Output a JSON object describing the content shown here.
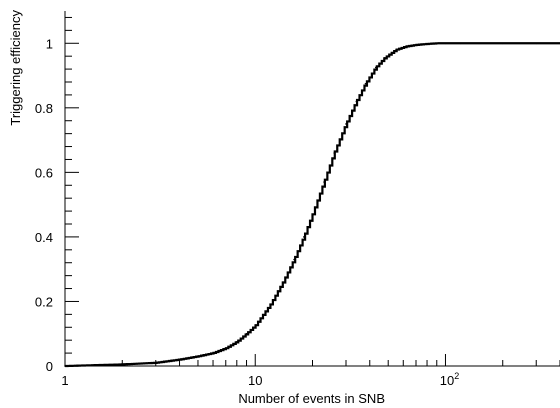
{
  "chart_data": {
    "type": "line",
    "title": "",
    "xlabel": "Number of events in SNB",
    "ylabel": "Triggering efficiency",
    "x_scale": "log",
    "xlim": [
      1,
      400
    ],
    "ylim": [
      0,
      1.1
    ],
    "x_ticks": [
      {
        "value": 1,
        "label": "1"
      },
      {
        "value": 10,
        "label": "10"
      },
      {
        "value": 100,
        "label": "10",
        "exponent": "2"
      }
    ],
    "y_ticks": [
      {
        "value": 0,
        "label": "0"
      },
      {
        "value": 0.2,
        "label": "0.2"
      },
      {
        "value": 0.4,
        "label": "0.4"
      },
      {
        "value": 0.6,
        "label": "0.6"
      },
      {
        "value": 0.8,
        "label": "0.8"
      },
      {
        "value": 1,
        "label": "1"
      }
    ],
    "grid": false,
    "series": [
      {
        "color": "#000000",
        "x": [
          1,
          2,
          3,
          4,
          5,
          6,
          7,
          8,
          9,
          10,
          12,
          14,
          16,
          18,
          20,
          23,
          26,
          30,
          34,
          38,
          43,
          48,
          55,
          62,
          70,
          80,
          90,
          100,
          120,
          150,
          200,
          300,
          400
        ],
        "y": [
          0.0,
          0.005,
          0.01,
          0.02,
          0.03,
          0.04,
          0.055,
          0.075,
          0.1,
          0.125,
          0.19,
          0.26,
          0.33,
          0.4,
          0.47,
          0.57,
          0.66,
          0.75,
          0.82,
          0.875,
          0.925,
          0.955,
          0.98,
          0.99,
          0.995,
          0.998,
          1.0,
          1.0,
          1.0,
          1.0,
          1.0,
          1.0,
          1.0
        ]
      }
    ]
  }
}
